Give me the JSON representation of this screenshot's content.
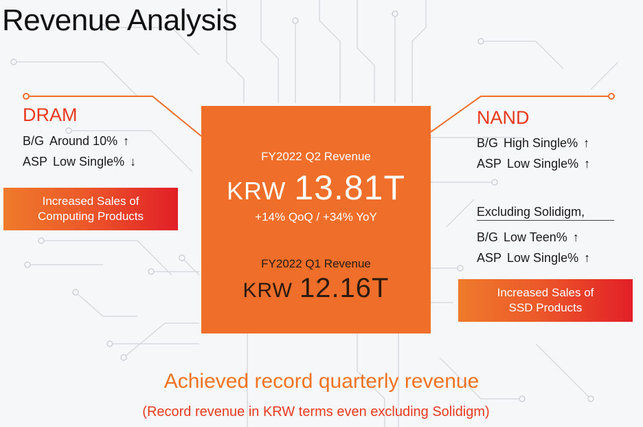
{
  "title": "Revenue Analysis",
  "dram": {
    "heading": "DRAM",
    "rows": [
      {
        "key": "B/G",
        "value": "Around 10%",
        "arrow": "↑"
      },
      {
        "key": "ASP",
        "value": "Low Single%",
        "arrow": "↓"
      }
    ],
    "box": [
      "Increased Sales of",
      "Computing Products"
    ]
  },
  "nand": {
    "heading": "NAND",
    "rows": [
      {
        "key": "B/G",
        "value": "High Single%",
        "arrow": "↑"
      },
      {
        "key": "ASP",
        "value": "Low Single%",
        "arrow": "↑"
      }
    ],
    "excluding_label": "Excluding Solidigm,",
    "excluding_rows": [
      {
        "key": "B/G",
        "value": "Low Teen%",
        "arrow": "↑"
      },
      {
        "key": "ASP",
        "value": "Low Single%",
        "arrow": "↑"
      }
    ],
    "box": [
      "Increased Sales of",
      "SSD Products"
    ]
  },
  "center": {
    "q2_label": "FY2022 Q2 Revenue",
    "q2_currency": "KRW",
    "q2_value": "13.81T",
    "q2_growth": "+14% QoQ / +34% YoY",
    "q1_label": "FY2022 Q1 Revenue",
    "q1_currency": "KRW",
    "q1_value": "12.16T"
  },
  "bottom": {
    "headline": "Achieved record quarterly revenue",
    "subline": "(Record revenue in KRW terms even excluding Solidigm)"
  },
  "colors": {
    "accent_orange": "#ee6e2a",
    "accent_red": "#e8391e",
    "box_gradient_end": "#e21f27"
  }
}
